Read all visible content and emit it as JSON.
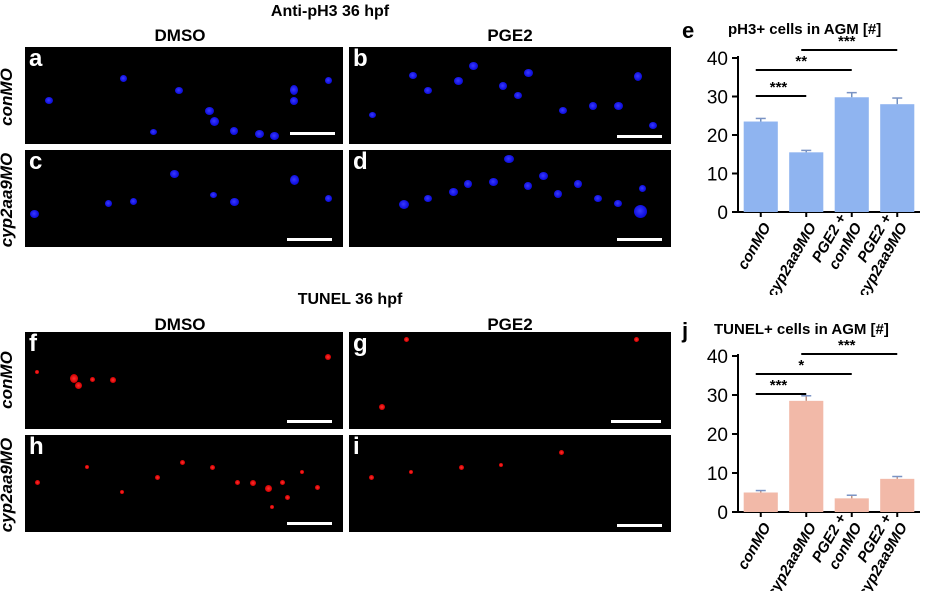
{
  "top": {
    "title": "Anti-pH3 36 hpf",
    "col_dmso": "DMSO",
    "col_pge2": "PGE2",
    "row1": "conMO",
    "row2": "cyp2aa9MO",
    "panels": [
      "a",
      "b",
      "c",
      "d"
    ],
    "cell_color": "#1a1aff"
  },
  "bottom": {
    "title": "TUNEL 36 hpf",
    "col_dmso": "DMSO",
    "col_pge2": "PGE2",
    "row1": "conMO",
    "row2": "cyp2aa9MO",
    "panels": [
      "f",
      "g",
      "h",
      "i"
    ],
    "cell_color": "#ff2020"
  },
  "chart_data": [
    {
      "panel_label": "e",
      "type": "bar",
      "title": "pH3+ cells in AGM [#]",
      "categories": [
        "conMO",
        "cyp2aa9MO",
        "PGE2 +\nconMO",
        "PGE2 +\ncyp2aa9MO"
      ],
      "values": [
        23.5,
        15.5,
        29.8,
        28.0
      ],
      "errors": [
        0.8,
        0.5,
        1.2,
        1.6
      ],
      "ylim": [
        0,
        40
      ],
      "yticks": [
        0,
        10,
        20,
        30,
        40
      ],
      "color": "#8fb4f0",
      "significance": [
        {
          "from": 0,
          "to": 1,
          "label": "***"
        },
        {
          "from": 0,
          "to": 2,
          "label": "**"
        },
        {
          "from": 1,
          "to": 3,
          "label": "***"
        }
      ]
    },
    {
      "panel_label": "j",
      "type": "bar",
      "title": "TUNEL+ cells in AGM [#]",
      "categories": [
        "conMO",
        "cyp2aa9MO",
        "PGE2 +\nconMO",
        "PGE2 +\ncyp2aa9MO"
      ],
      "values": [
        5.0,
        28.5,
        3.5,
        8.5
      ],
      "errors": [
        0.5,
        1.3,
        0.8,
        0.6
      ],
      "ylim": [
        0,
        40
      ],
      "yticks": [
        0,
        10,
        20,
        30,
        40
      ],
      "color": "#f2b9a8",
      "significance": [
        {
          "from": 0,
          "to": 1,
          "label": "***"
        },
        {
          "from": 0,
          "to": 2,
          "label": "*"
        },
        {
          "from": 1,
          "to": 3,
          "label": "***"
        }
      ]
    }
  ]
}
